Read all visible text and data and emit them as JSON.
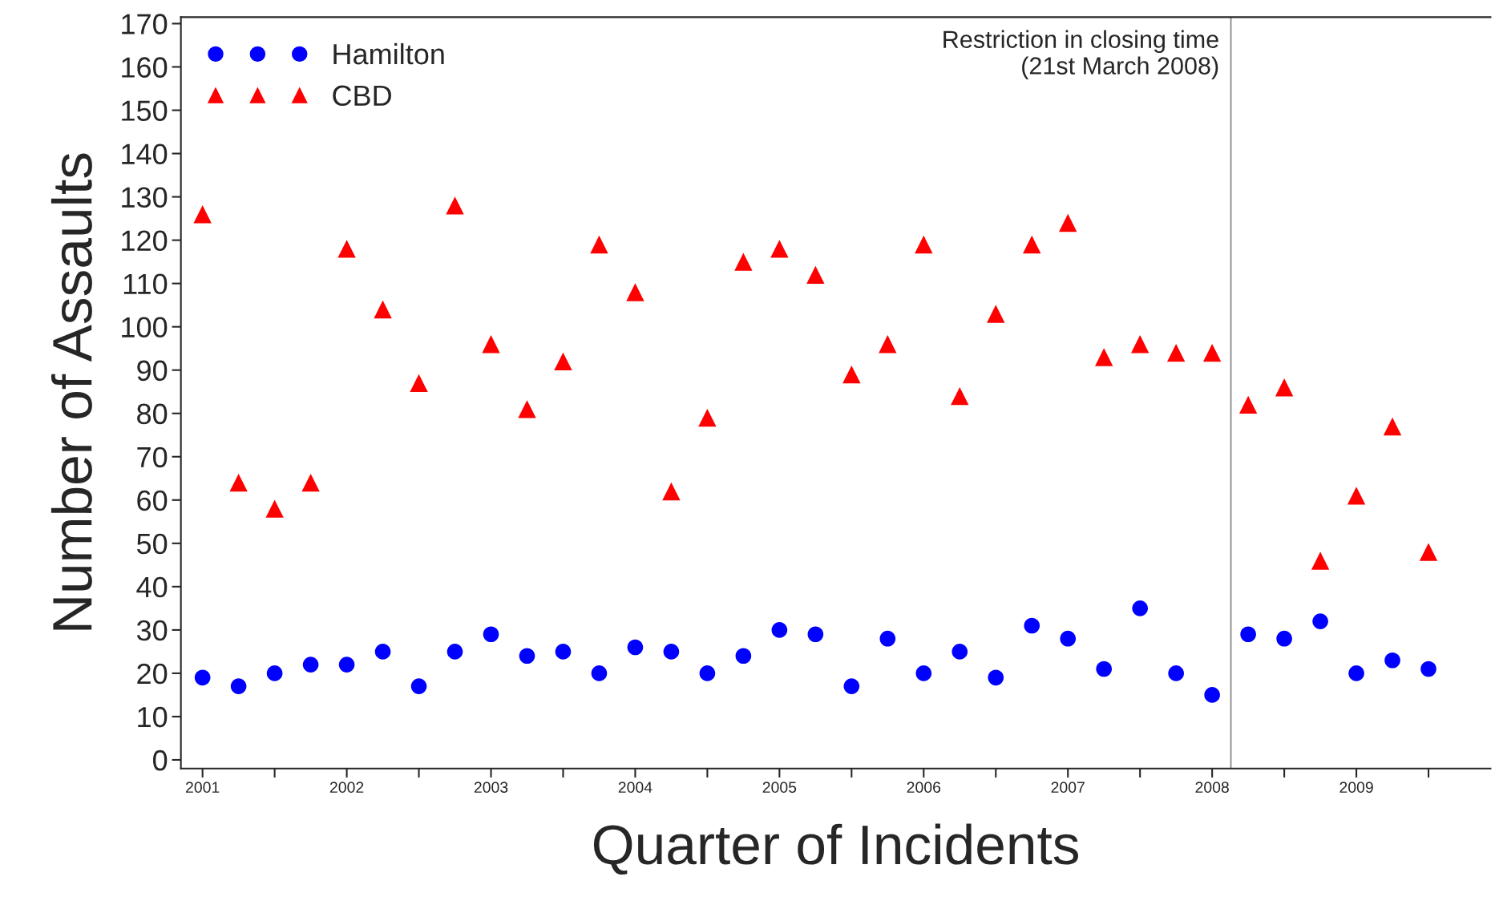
{
  "chart_data": {
    "type": "scatter",
    "xlabel": "Quarter of Incidents",
    "ylabel": "Number of Assaults",
    "x": [
      2001,
      2001.25,
      2001.5,
      2001.75,
      2002,
      2002.25,
      2002.5,
      2002.75,
      2003,
      2003.25,
      2003.5,
      2003.75,
      2004,
      2004.25,
      2004.5,
      2004.75,
      2005,
      2005.25,
      2005.5,
      2005.75,
      2006,
      2006.25,
      2006.5,
      2006.75,
      2007,
      2007.25,
      2007.5,
      2007.75,
      2008,
      2008.25,
      2008.5,
      2008.75,
      2009,
      2009.25,
      2009.5
    ],
    "series": [
      {
        "name": "Hamilton",
        "color": "#0000ff",
        "marker": "circle",
        "values": [
          19,
          17,
          20,
          22,
          22,
          25,
          17,
          25,
          29,
          24,
          25,
          20,
          26,
          25,
          20,
          24,
          30,
          29,
          17,
          28,
          20,
          25,
          19,
          31,
          28,
          21,
          35,
          20,
          15,
          29,
          28,
          32,
          20,
          23,
          21
        ]
      },
      {
        "name": "CBD",
        "color": "#ff0000",
        "marker": "triangle",
        "values": [
          126,
          64,
          58,
          64,
          118,
          104,
          87,
          128,
          96,
          81,
          92,
          119,
          108,
          62,
          79,
          115,
          118,
          112,
          89,
          96,
          119,
          84,
          103,
          119,
          124,
          93,
          96,
          94,
          94,
          82,
          86,
          46,
          61,
          77,
          48
        ]
      }
    ],
    "ref_lines": [
      {
        "axis": "x",
        "value": 2008.13,
        "label": "Restriction in closing time\n(21st March 2008)",
        "color": "#808080"
      }
    ],
    "xlim": [
      2000.85,
      2009.93
    ],
    "xticks": [
      2001,
      {
        "value": 2001.5,
        "label": null
      },
      2002,
      {
        "value": 2002.5,
        "label": null
      },
      2003,
      {
        "value": 2003.5,
        "label": null
      },
      2004,
      {
        "value": 2004.5,
        "label": null
      },
      2005,
      {
        "value": 2005.5,
        "label": null
      },
      2006,
      {
        "value": 2006.5,
        "label": null
      },
      2007,
      {
        "value": 2007.5,
        "label": null
      },
      2008,
      {
        "value": 2008.5,
        "label": null
      },
      2009,
      {
        "value": 2009.5,
        "label": null
      }
    ],
    "ylim": [
      -2,
      171.5
    ],
    "yticks": [
      0,
      10,
      20,
      30,
      40,
      50,
      60,
      70,
      80,
      90,
      100,
      110,
      120,
      130,
      140,
      150,
      160,
      170
    ],
    "grid": false,
    "legend": "top left"
  }
}
